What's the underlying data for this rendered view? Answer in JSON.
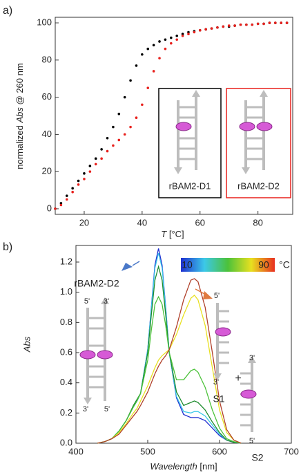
{
  "chart_data": [
    {
      "type": "scatter",
      "panel_label": "a)",
      "x_label": {
        "italic": "T",
        "rest": " [°C]"
      },
      "y_label": {
        "before": "normalized ",
        "italic": "Abs",
        "after": " @ 260 nm"
      },
      "x": [
        10,
        12,
        14,
        16,
        18,
        20,
        22,
        24,
        26,
        28,
        30,
        32,
        34,
        36,
        38,
        40,
        42,
        44,
        46,
        48,
        50,
        52,
        54,
        56,
        58,
        60,
        62,
        64,
        66,
        68,
        70,
        72,
        74,
        76,
        78,
        80,
        82,
        84,
        86,
        88,
        90
      ],
      "series": [
        {
          "color": "#000000",
          "values": [
            0,
            3,
            7,
            11,
            15,
            19,
            23,
            27,
            32,
            38,
            44,
            51,
            60,
            69,
            77,
            83,
            86,
            88,
            90,
            91,
            92,
            93,
            94,
            95,
            95.5,
            96,
            96.5,
            97,
            97.5,
            98,
            98,
            98.5,
            99,
            99,
            99,
            99.5,
            99.5,
            100,
            100,
            100,
            100
          ]
        },
        {
          "color": "#e8201c",
          "values": [
            0,
            2,
            5,
            9,
            13,
            16,
            20,
            24,
            27,
            31,
            34,
            37,
            40,
            44,
            49,
            56,
            65,
            74,
            81,
            86,
            89,
            91,
            93,
            94,
            95,
            96,
            96.5,
            97,
            97.5,
            98,
            98.5,
            98.5,
            99,
            99,
            99,
            99.5,
            99.5,
            100,
            100,
            100,
            100
          ]
        }
      ],
      "xlim": [
        10,
        92
      ],
      "xticks": [
        20,
        40,
        60,
        80
      ],
      "ylim": [
        -3,
        103
      ],
      "yticks": [
        0,
        20,
        40,
        60,
        80,
        100
      ],
      "insets": [
        {
          "label": "rBAM2-D1",
          "color": "#000000"
        },
        {
          "label": "rBAM2-D2",
          "color": "#e8201c"
        }
      ]
    },
    {
      "type": "line",
      "panel_label": "b)",
      "x_label": {
        "italic": "Wavelength",
        "rest": " [nm]"
      },
      "y_label": {
        "italic": "Abs"
      },
      "x": [
        430,
        440,
        450,
        460,
        470,
        480,
        485,
        490,
        500,
        505,
        510,
        515,
        520,
        525,
        530,
        540,
        550,
        560,
        565,
        570,
        580,
        590,
        600,
        610,
        620,
        630
      ],
      "series": [
        {
          "color": "#1f2fd0",
          "values": [
            0,
            0.01,
            0.03,
            0.08,
            0.15,
            0.24,
            0.28,
            0.33,
            0.62,
            0.9,
            1.18,
            1.29,
            1.18,
            0.9,
            0.6,
            0.3,
            0.19,
            0.17,
            0.17,
            0.17,
            0.15,
            0.1,
            0.05,
            0.02,
            0.005,
            0
          ]
        },
        {
          "color": "#3cc8e8",
          "values": [
            0,
            0.01,
            0.03,
            0.08,
            0.15,
            0.24,
            0.28,
            0.33,
            0.62,
            0.89,
            1.16,
            1.26,
            1.16,
            0.89,
            0.6,
            0.31,
            0.21,
            0.2,
            0.21,
            0.21,
            0.18,
            0.12,
            0.06,
            0.02,
            0.005,
            0
          ]
        },
        {
          "color": "#1e8c2e",
          "values": [
            0,
            0.01,
            0.03,
            0.08,
            0.15,
            0.25,
            0.29,
            0.33,
            0.6,
            0.85,
            1.08,
            1.17,
            1.08,
            0.85,
            0.6,
            0.34,
            0.25,
            0.27,
            0.28,
            0.27,
            0.22,
            0.14,
            0.07,
            0.02,
            0.005,
            0
          ]
        },
        {
          "color": "#4cc23a",
          "values": [
            0,
            0.01,
            0.03,
            0.08,
            0.15,
            0.24,
            0.28,
            0.33,
            0.55,
            0.75,
            0.92,
            0.97,
            0.92,
            0.78,
            0.6,
            0.42,
            0.42,
            0.48,
            0.49,
            0.47,
            0.37,
            0.22,
            0.1,
            0.03,
            0.01,
            0
          ]
        },
        {
          "color": "#e8e020",
          "values": [
            0,
            0.01,
            0.03,
            0.07,
            0.13,
            0.2,
            0.23,
            0.28,
            0.38,
            0.44,
            0.5,
            0.55,
            0.58,
            0.6,
            0.62,
            0.72,
            0.85,
            0.96,
            0.98,
            0.95,
            0.78,
            0.5,
            0.22,
            0.07,
            0.02,
            0
          ]
        },
        {
          "color": "#b0402a",
          "values": [
            0,
            0.01,
            0.03,
            0.06,
            0.12,
            0.18,
            0.21,
            0.25,
            0.34,
            0.4,
            0.46,
            0.51,
            0.55,
            0.58,
            0.62,
            0.77,
            0.95,
            1.08,
            1.09,
            1.07,
            0.9,
            0.6,
            0.28,
            0.09,
            0.02,
            0
          ]
        }
      ],
      "xlim": [
        400,
        700
      ],
      "xticks": [
        400,
        500,
        600,
        700
      ],
      "ylim": [
        0,
        1.31
      ],
      "yticks": [
        {
          "value": 0,
          "label": "0.0"
        },
        0.2,
        0.4,
        0.6,
        0.8,
        {
          "value": 1,
          "label": "1.0"
        },
        1.2
      ],
      "colorbar": {
        "min": 10,
        "max": 90,
        "unit": "°C",
        "colors": [
          "#1f2fd0",
          "#3cc8e8",
          "#4cc23a",
          "#e8e020",
          "#e83020"
        ]
      },
      "annotations": {
        "duplex": "rBAM2-D2",
        "duplex_top_left": "5'",
        "duplex_top_right": "3'",
        "duplex_bottom_left": "3'",
        "duplex_bottom_right": "5'",
        "s1_top": "5'",
        "s1_bottom": "3'",
        "s1": "S1",
        "plus": "+",
        "s2_top": "3'",
        "s2_bottom": "5'",
        "s2": "S2"
      }
    }
  ]
}
